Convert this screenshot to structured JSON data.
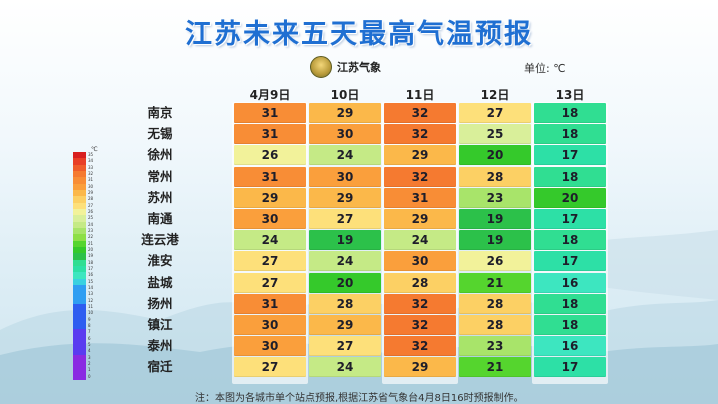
{
  "title": "江苏未来五天最高气温预报",
  "logo_text": "江苏气象",
  "unit_label": "单位: ℃",
  "note": "注：本图为各城市单个站点预报,根据江苏省气象台4月8日16时预报制作。",
  "legend": {
    "unit": "℃",
    "values": [
      35,
      34,
      33,
      32,
      31,
      30,
      29,
      28,
      27,
      26,
      25,
      24,
      23,
      22,
      21,
      20,
      19,
      18,
      17,
      16,
      15,
      14,
      13,
      12,
      11,
      10,
      9,
      8,
      7,
      6,
      5,
      4,
      3,
      2,
      1,
      0
    ]
  },
  "chart_data": {
    "type": "table",
    "title": "江苏未来五天最高气温预报",
    "unit": "℃",
    "columns": [
      "4月9日",
      "10日",
      "11日",
      "12日",
      "13日"
    ],
    "rows": [
      {
        "city": "南京",
        "values": [
          31,
          29,
          32,
          27,
          18
        ]
      },
      {
        "city": "无锡",
        "values": [
          31,
          30,
          32,
          25,
          18
        ]
      },
      {
        "city": "徐州",
        "values": [
          26,
          24,
          29,
          20,
          17
        ]
      },
      {
        "city": "常州",
        "values": [
          31,
          30,
          32,
          28,
          18
        ]
      },
      {
        "city": "苏州",
        "values": [
          29,
          29,
          31,
          23,
          20
        ]
      },
      {
        "city": "南通",
        "values": [
          30,
          27,
          29,
          19,
          17
        ]
      },
      {
        "city": "连云港",
        "values": [
          24,
          19,
          24,
          19,
          18
        ]
      },
      {
        "city": "淮安",
        "values": [
          27,
          24,
          30,
          26,
          17
        ]
      },
      {
        "city": "盐城",
        "values": [
          27,
          20,
          28,
          21,
          16
        ]
      },
      {
        "city": "扬州",
        "values": [
          31,
          28,
          32,
          28,
          18
        ]
      },
      {
        "city": "镇江",
        "values": [
          30,
          29,
          32,
          28,
          18
        ]
      },
      {
        "city": "泰州",
        "values": [
          30,
          27,
          32,
          23,
          16
        ]
      },
      {
        "city": "宿迁",
        "values": [
          27,
          24,
          29,
          21,
          17
        ]
      }
    ]
  }
}
